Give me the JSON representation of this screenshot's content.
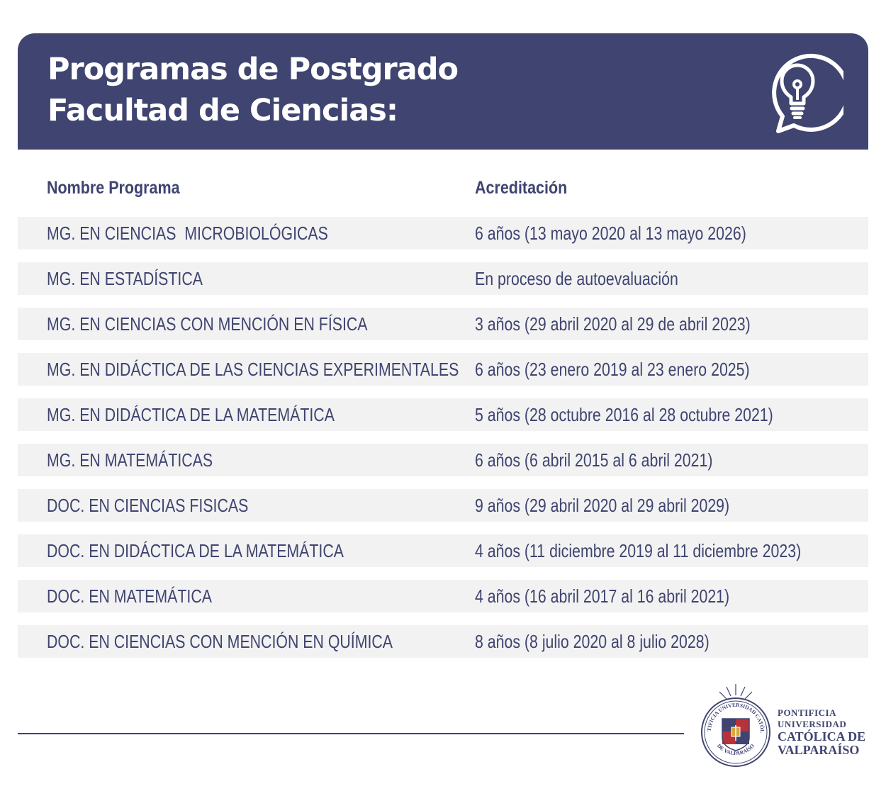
{
  "header": {
    "title_line1": "Programas de Postgrado",
    "title_line2": "Facultad de Ciencias:",
    "icon": "lightbulb-speech-bubble-icon",
    "background_color": "#3f4470"
  },
  "table": {
    "columns": [
      "Nombre Programa",
      "Acreditación"
    ],
    "rows": [
      {
        "programa": "MG. EN CIENCIAS  MICROBIOLÓGICAS",
        "acreditacion": "6 años (13 mayo 2020 al 13 mayo 2026)"
      },
      {
        "programa": "MG. EN ESTADÍSTICA",
        "acreditacion": "En proceso de autoevaluación"
      },
      {
        "programa": "MG. EN CIENCIAS CON MENCIÓN EN FÍSICA",
        "acreditacion": "3 años (29 abril 2020 al 29 de abril 2023)"
      },
      {
        "programa": "MG. EN DIDÁCTICA DE LAS CIENCIAS EXPERIMENTALES",
        "acreditacion": "6 años (23 enero 2019 al 23 enero 2025)"
      },
      {
        "programa": "MG. EN DIDÁCTICA DE LA MATEMÁTICA",
        "acreditacion": "5 años (28 octubre 2016 al 28 octubre 2021)"
      },
      {
        "programa": "MG. EN MATEMÁTICAS",
        "acreditacion": "6 años (6 abril 2015 al 6 abril 2021)"
      },
      {
        "programa": "DOC. EN CIENCIAS FISICAS",
        "acreditacion": "9 años (29 abril 2020 al 29 abril 2029)"
      },
      {
        "programa": "DOC. EN DIDÁCTICA DE LA MATEMÁTICA",
        "acreditacion": "4 años (11 diciembre 2019 al 11 diciembre 2023)"
      },
      {
        "programa": "DOC. EN MATEMÁTICA",
        "acreditacion": "4 años (16 abril 2017 al 16 abril 2021)"
      },
      {
        "programa": "DOC. EN CIENCIAS CON MENCIÓN EN QUÍMICA",
        "acreditacion": "8 años (8 julio 2020 al 8 julio 2028)"
      }
    ],
    "row_background": "#f2f2f2",
    "text_color": "#3f4470"
  },
  "footer": {
    "logo": {
      "icon": "university-seal-icon",
      "seal_text_top": "PONTIFICIA UNIVERSIDAD CATÓLICA",
      "seal_text_bottom": "DE VALPARAÍSO"
    },
    "university": {
      "line1": "PONTIFICIA",
      "line2": "UNIVERSIDAD",
      "line3": "CATÓLICA DE",
      "line4": "VALPARAÍSO"
    }
  }
}
